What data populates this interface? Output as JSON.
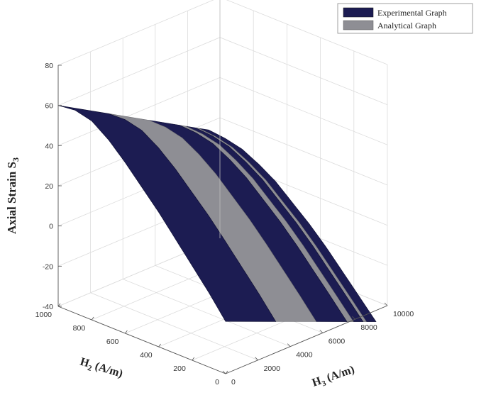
{
  "chart_data": {
    "type": "surface",
    "xlabel": "H",
    "xlabel_sub": "2",
    "xlabel_unit": " (A/m)",
    "ylabel": "H",
    "ylabel_sub": "3",
    "ylabel_unit": " (A/m)",
    "zlabel": "Axial Strain S",
    "zlabel_sub": "3",
    "xlim": [
      0,
      1000
    ],
    "ylim": [
      0,
      10000
    ],
    "zlim": [
      -40,
      80
    ],
    "x_ticks": [
      0,
      200,
      400,
      600,
      800,
      1000
    ],
    "y_ticks": [
      0,
      2000,
      4000,
      6000,
      8000,
      10000
    ],
    "z_ticks": [
      -40,
      -20,
      0,
      20,
      40,
      60,
      80
    ],
    "grid": true,
    "legend_position": "top-right",
    "series": [
      {
        "name": "Experimental Graph",
        "color": "#1c1c52",
        "strips": [
          {
            "h3_from": 0,
            "h3_to": 3100
          },
          {
            "h3_from": 5600,
            "h3_to": 7500
          },
          {
            "h3_from": 7900,
            "h3_to": 8500
          },
          {
            "h3_from": 8700,
            "h3_to": 9300
          }
        ]
      },
      {
        "name": "Analytical Graph",
        "color": "#8e8e94",
        "strips": [
          {
            "h3_from": 3100,
            "h3_to": 5600
          },
          {
            "h3_from": 7500,
            "h3_to": 7900
          },
          {
            "h3_from": 8500,
            "h3_to": 8700
          }
        ]
      }
    ],
    "surface_profile": {
      "h2_samples": [
        0,
        100,
        200,
        300,
        400,
        500,
        600,
        700,
        800,
        900,
        1000
      ],
      "s3_at_h3_0": [
        -14,
        -3,
        7,
        17,
        27,
        36,
        45,
        53,
        59,
        61,
        60
      ],
      "s3_at_h3_10000": [
        -48,
        -39,
        -30,
        -21,
        -13,
        -6,
        1,
        6,
        10,
        12,
        13
      ]
    }
  }
}
